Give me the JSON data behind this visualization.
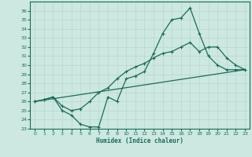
{
  "xlabel": "Humidex (Indice chaleur)",
  "bg_color": "#cce8e0",
  "line_color": "#1a6b5a",
  "grid_color": "#b8d8d0",
  "xlim": [
    -0.5,
    23.5
  ],
  "ylim": [
    23,
    37
  ],
  "yticks": [
    23,
    24,
    25,
    26,
    27,
    28,
    29,
    30,
    31,
    32,
    33,
    34,
    35,
    36
  ],
  "xticks": [
    0,
    1,
    2,
    3,
    4,
    5,
    6,
    7,
    8,
    9,
    10,
    11,
    12,
    13,
    14,
    15,
    16,
    17,
    18,
    19,
    20,
    21,
    22,
    23
  ],
  "series1_x": [
    0,
    1,
    2,
    3,
    4,
    5,
    6,
    7,
    8,
    9,
    10,
    11,
    12,
    13,
    14,
    15,
    16,
    17,
    18,
    19,
    20,
    21,
    22,
    23
  ],
  "series1_y": [
    26.0,
    26.2,
    26.5,
    25.0,
    24.5,
    23.5,
    23.2,
    23.2,
    26.5,
    26.0,
    28.5,
    28.8,
    29.3,
    31.3,
    33.5,
    35.0,
    35.2,
    36.3,
    33.5,
    31.0,
    30.0,
    29.5,
    29.5,
    29.5
  ],
  "series2_x": [
    0,
    1,
    2,
    3,
    4,
    5,
    6,
    7,
    8,
    9,
    10,
    11,
    12,
    13,
    14,
    15,
    16,
    17,
    18,
    19,
    20,
    21,
    22,
    23
  ],
  "series2_y": [
    26.0,
    26.2,
    26.5,
    25.5,
    25.0,
    25.2,
    26.0,
    27.0,
    27.5,
    28.5,
    29.3,
    29.8,
    30.2,
    30.8,
    31.3,
    31.5,
    32.0,
    32.5,
    31.5,
    32.0,
    32.0,
    30.8,
    30.0,
    29.5
  ],
  "series3_x": [
    0,
    23
  ],
  "series3_y": [
    26.0,
    29.5
  ]
}
